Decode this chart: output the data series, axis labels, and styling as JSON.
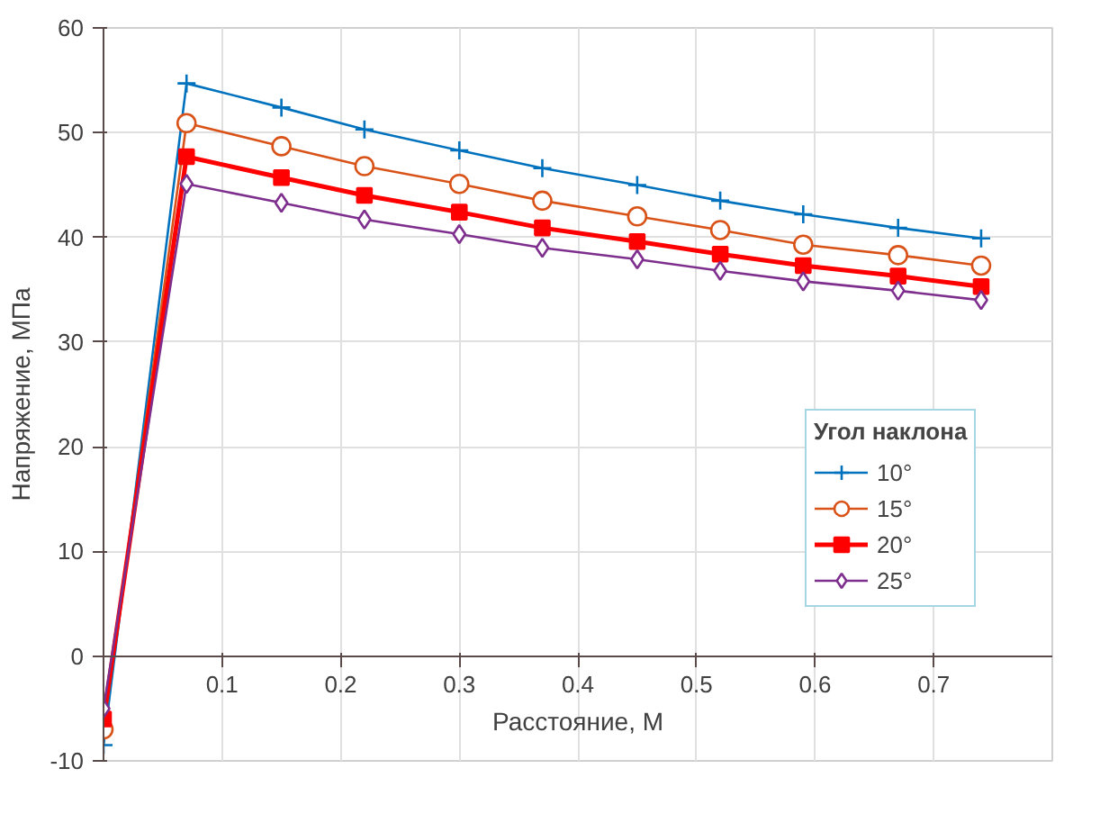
{
  "chart_data": {
    "type": "line",
    "xlabel": "Расстояние, М",
    "ylabel": "Напряжение, МПа",
    "legend_title": "Угол наклона",
    "x": [
      0,
      0.07,
      0.15,
      0.22,
      0.3,
      0.37,
      0.45,
      0.52,
      0.59,
      0.67,
      0.74
    ],
    "xlim": [
      0,
      0.8
    ],
    "ylim": [
      -10,
      60
    ],
    "xticks": [
      0.1,
      0.2,
      0.3,
      0.4,
      0.5,
      0.6,
      0.7
    ],
    "yticks": [
      -10,
      0,
      10,
      20,
      30,
      40,
      50,
      60
    ],
    "grid": true,
    "legend": "right",
    "series": [
      {
        "name": "10°",
        "color": "#0072bd",
        "marker": "cross",
        "values": [
          -8.5,
          54.7,
          52.4,
          50.3,
          48.3,
          46.6,
          45.0,
          43.5,
          42.2,
          40.9,
          39.9
        ]
      },
      {
        "name": "15°",
        "color": "#d95319",
        "marker": "circle",
        "values": [
          -7,
          50.9,
          48.7,
          46.8,
          45.1,
          43.5,
          42.0,
          40.7,
          39.3,
          38.3,
          37.3
        ]
      },
      {
        "name": "20°",
        "color": "#ff0000",
        "marker": "square",
        "values": [
          -6,
          47.7,
          45.7,
          44.0,
          42.4,
          40.9,
          39.6,
          38.4,
          37.3,
          36.3,
          35.3
        ]
      },
      {
        "name": "25°",
        "color": "#7e2f8e",
        "marker": "diamond",
        "values": [
          -5,
          45.1,
          43.3,
          41.7,
          40.3,
          39.0,
          37.9,
          36.8,
          35.8,
          34.9,
          34.0
        ]
      }
    ]
  }
}
